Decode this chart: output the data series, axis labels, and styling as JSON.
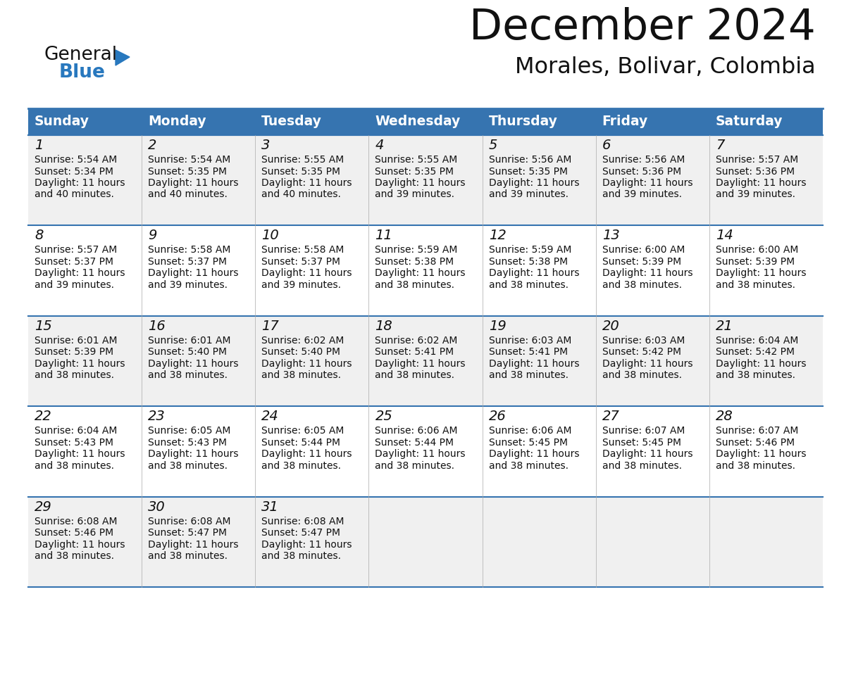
{
  "title": "December 2024",
  "subtitle": "Morales, Bolivar, Colombia",
  "header_bg_color": "#3674B0",
  "header_text_color": "#FFFFFF",
  "row_colors": [
    "#F0F0F0",
    "#FFFFFF",
    "#F0F0F0",
    "#FFFFFF",
    "#F0F0F0"
  ],
  "border_color": "#3674B0",
  "sep_color": "#AAAAAA",
  "day_headers": [
    "Sunday",
    "Monday",
    "Tuesday",
    "Wednesday",
    "Thursday",
    "Friday",
    "Saturday"
  ],
  "title_color": "#111111",
  "subtitle_color": "#111111",
  "text_color": "#111111",
  "logo_general_color": "#111111",
  "logo_blue_color": "#2878BE",
  "weeks": [
    [
      {
        "day": 1,
        "sunrise": "5:54 AM",
        "sunset": "5:34 PM",
        "daylight": "11 hours and 40 minutes."
      },
      {
        "day": 2,
        "sunrise": "5:54 AM",
        "sunset": "5:35 PM",
        "daylight": "11 hours and 40 minutes."
      },
      {
        "day": 3,
        "sunrise": "5:55 AM",
        "sunset": "5:35 PM",
        "daylight": "11 hours and 40 minutes."
      },
      {
        "day": 4,
        "sunrise": "5:55 AM",
        "sunset": "5:35 PM",
        "daylight": "11 hours and 39 minutes."
      },
      {
        "day": 5,
        "sunrise": "5:56 AM",
        "sunset": "5:35 PM",
        "daylight": "11 hours and 39 minutes."
      },
      {
        "day": 6,
        "sunrise": "5:56 AM",
        "sunset": "5:36 PM",
        "daylight": "11 hours and 39 minutes."
      },
      {
        "day": 7,
        "sunrise": "5:57 AM",
        "sunset": "5:36 PM",
        "daylight": "11 hours and 39 minutes."
      }
    ],
    [
      {
        "day": 8,
        "sunrise": "5:57 AM",
        "sunset": "5:37 PM",
        "daylight": "11 hours and 39 minutes."
      },
      {
        "day": 9,
        "sunrise": "5:58 AM",
        "sunset": "5:37 PM",
        "daylight": "11 hours and 39 minutes."
      },
      {
        "day": 10,
        "sunrise": "5:58 AM",
        "sunset": "5:37 PM",
        "daylight": "11 hours and 39 minutes."
      },
      {
        "day": 11,
        "sunrise": "5:59 AM",
        "sunset": "5:38 PM",
        "daylight": "11 hours and 38 minutes."
      },
      {
        "day": 12,
        "sunrise": "5:59 AM",
        "sunset": "5:38 PM",
        "daylight": "11 hours and 38 minutes."
      },
      {
        "day": 13,
        "sunrise": "6:00 AM",
        "sunset": "5:39 PM",
        "daylight": "11 hours and 38 minutes."
      },
      {
        "day": 14,
        "sunrise": "6:00 AM",
        "sunset": "5:39 PM",
        "daylight": "11 hours and 38 minutes."
      }
    ],
    [
      {
        "day": 15,
        "sunrise": "6:01 AM",
        "sunset": "5:39 PM",
        "daylight": "11 hours and 38 minutes."
      },
      {
        "day": 16,
        "sunrise": "6:01 AM",
        "sunset": "5:40 PM",
        "daylight": "11 hours and 38 minutes."
      },
      {
        "day": 17,
        "sunrise": "6:02 AM",
        "sunset": "5:40 PM",
        "daylight": "11 hours and 38 minutes."
      },
      {
        "day": 18,
        "sunrise": "6:02 AM",
        "sunset": "5:41 PM",
        "daylight": "11 hours and 38 minutes."
      },
      {
        "day": 19,
        "sunrise": "6:03 AM",
        "sunset": "5:41 PM",
        "daylight": "11 hours and 38 minutes."
      },
      {
        "day": 20,
        "sunrise": "6:03 AM",
        "sunset": "5:42 PM",
        "daylight": "11 hours and 38 minutes."
      },
      {
        "day": 21,
        "sunrise": "6:04 AM",
        "sunset": "5:42 PM",
        "daylight": "11 hours and 38 minutes."
      }
    ],
    [
      {
        "day": 22,
        "sunrise": "6:04 AM",
        "sunset": "5:43 PM",
        "daylight": "11 hours and 38 minutes."
      },
      {
        "day": 23,
        "sunrise": "6:05 AM",
        "sunset": "5:43 PM",
        "daylight": "11 hours and 38 minutes."
      },
      {
        "day": 24,
        "sunrise": "6:05 AM",
        "sunset": "5:44 PM",
        "daylight": "11 hours and 38 minutes."
      },
      {
        "day": 25,
        "sunrise": "6:06 AM",
        "sunset": "5:44 PM",
        "daylight": "11 hours and 38 minutes."
      },
      {
        "day": 26,
        "sunrise": "6:06 AM",
        "sunset": "5:45 PM",
        "daylight": "11 hours and 38 minutes."
      },
      {
        "day": 27,
        "sunrise": "6:07 AM",
        "sunset": "5:45 PM",
        "daylight": "11 hours and 38 minutes."
      },
      {
        "day": 28,
        "sunrise": "6:07 AM",
        "sunset": "5:46 PM",
        "daylight": "11 hours and 38 minutes."
      }
    ],
    [
      {
        "day": 29,
        "sunrise": "6:08 AM",
        "sunset": "5:46 PM",
        "daylight": "11 hours and 38 minutes."
      },
      {
        "day": 30,
        "sunrise": "6:08 AM",
        "sunset": "5:47 PM",
        "daylight": "11 hours and 38 minutes."
      },
      {
        "day": 31,
        "sunrise": "6:08 AM",
        "sunset": "5:47 PM",
        "daylight": "11 hours and 38 minutes."
      },
      null,
      null,
      null,
      null
    ]
  ]
}
